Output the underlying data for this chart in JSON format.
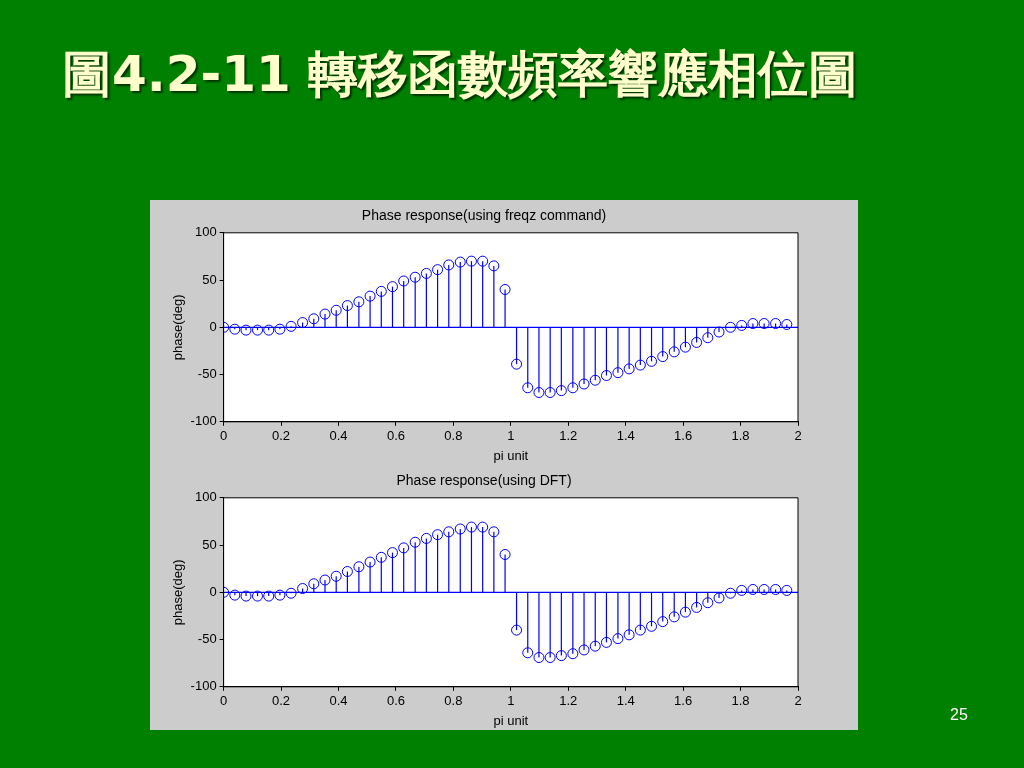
{
  "chart_data": [
    {
      "type": "other",
      "title": "圖4.2-11 轉移函數頻率響應相位圖",
      "annotations": [
        "25"
      ]
    },
    {
      "type": "lollipop",
      "title": "Phase response(using freqz command)",
      "ref_lines": [
        {
          "axis": "y",
          "value": 0,
          "color": "#0000ff"
        }
      ],
      "xlabel": "pi unit",
      "ylabel": "phase(deg)",
      "xlim": [
        0,
        2
      ],
      "xticks": [
        0,
        0.2,
        0.4,
        0.6,
        0.8,
        1,
        1.2,
        1.4,
        1.6,
        1.8,
        2
      ],
      "ylim": [
        -100,
        100
      ],
      "yticks": [
        -100,
        -50,
        0,
        50,
        100
      ],
      "grid": false,
      "legend": false,
      "marker": "circle",
      "x": [
        0,
        0.039,
        0.078,
        0.118,
        0.157,
        0.196,
        0.235,
        0.275,
        0.314,
        0.353,
        0.392,
        0.431,
        0.471,
        0.51,
        0.549,
        0.588,
        0.627,
        0.667,
        0.706,
        0.745,
        0.784,
        0.824,
        0.863,
        0.902,
        0.941,
        0.98,
        1.02,
        1.059,
        1.098,
        1.137,
        1.176,
        1.216,
        1.255,
        1.294,
        1.333,
        1.373,
        1.412,
        1.451,
        1.49,
        1.529,
        1.569,
        1.608,
        1.647,
        1.686,
        1.725,
        1.765,
        1.804,
        1.843,
        1.882,
        1.922,
        1.961
      ],
      "series": [
        {
          "color": "#0000ff",
          "values": [
            0,
            -2,
            -3,
            -3,
            -3,
            -2,
            1,
            5,
            9,
            14,
            18,
            23,
            27,
            33,
            38,
            43,
            49,
            53,
            57,
            61,
            66,
            69,
            70,
            70,
            65,
            40,
            -39,
            -64,
            -69,
            -69,
            -67,
            -64,
            -60,
            -56,
            -51,
            -48,
            -44,
            -40,
            -36,
            -31,
            -26,
            -21,
            -16,
            -11,
            -5,
            0,
            2,
            4,
            4,
            4,
            3
          ]
        }
      ]
    },
    {
      "type": "lollipop",
      "title": "Phase response(using DFT)",
      "ref_lines": [
        {
          "axis": "y",
          "value": 0,
          "color": "#0000ff"
        }
      ],
      "xlabel": "pi unit",
      "ylabel": "phase(deg)",
      "xlim": [
        0,
        2
      ],
      "xticks": [
        0,
        0.2,
        0.4,
        0.6,
        0.8,
        1,
        1.2,
        1.4,
        1.6,
        1.8,
        2
      ],
      "ylim": [
        -100,
        100
      ],
      "yticks": [
        -100,
        -50,
        0,
        50,
        100
      ],
      "grid": false,
      "legend": false,
      "marker": "circle",
      "x": [
        0,
        0.039,
        0.078,
        0.118,
        0.157,
        0.196,
        0.235,
        0.275,
        0.314,
        0.353,
        0.392,
        0.431,
        0.471,
        0.51,
        0.549,
        0.588,
        0.627,
        0.667,
        0.706,
        0.745,
        0.784,
        0.824,
        0.863,
        0.902,
        0.941,
        0.98,
        1.02,
        1.059,
        1.098,
        1.137,
        1.176,
        1.216,
        1.255,
        1.294,
        1.333,
        1.373,
        1.412,
        1.451,
        1.49,
        1.529,
        1.569,
        1.608,
        1.647,
        1.686,
        1.725,
        1.765,
        1.804,
        1.843,
        1.882,
        1.922,
        1.961
      ],
      "series": [
        {
          "color": "#0000ff",
          "values": [
            0,
            -3,
            -4,
            -4,
            -4,
            -3,
            -1,
            4,
            9,
            13,
            17,
            22,
            27,
            32,
            37,
            42,
            47,
            53,
            57,
            61,
            64,
            67,
            69,
            69,
            64,
            40,
            -40,
            -64,
            -69,
            -69,
            -67,
            -65,
            -61,
            -57,
            -53,
            -49,
            -45,
            -40,
            -36,
            -31,
            -26,
            -21,
            -16,
            -11,
            -6,
            -1,
            2,
            3,
            3,
            3,
            2
          ]
        }
      ]
    }
  ]
}
